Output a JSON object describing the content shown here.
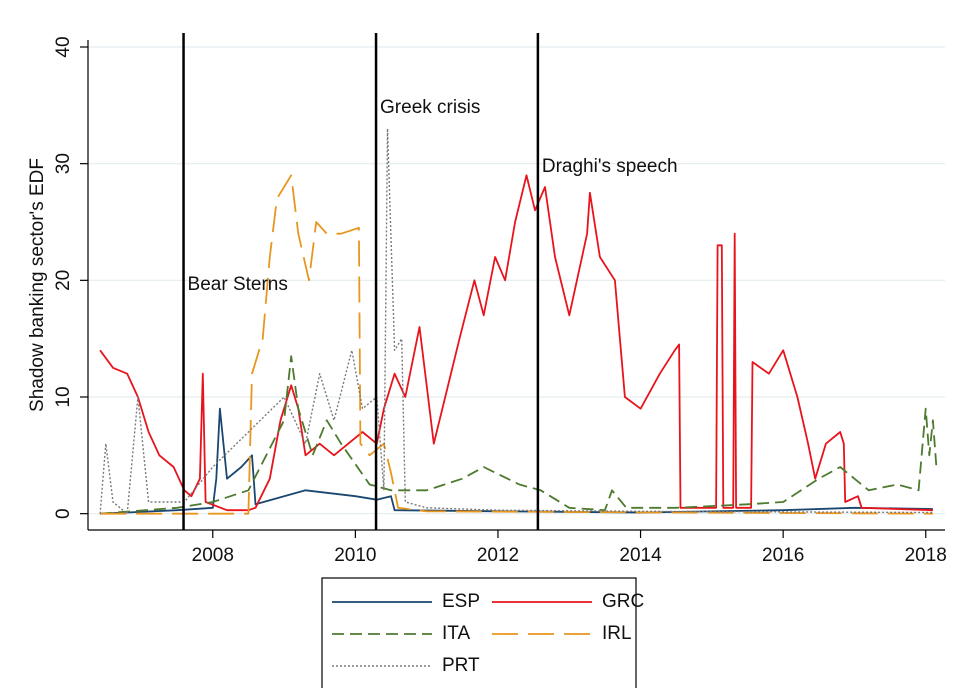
{
  "chart_data": {
    "type": "line",
    "y_label": "Shadow banking sector's EDF",
    "xlim": [
      2006.25,
      2018.27
    ],
    "ylim": [
      -1.4,
      40.6
    ],
    "xticks": [
      2008,
      2010,
      2012,
      2014,
      2016,
      2018
    ],
    "yticks": [
      0,
      10,
      20,
      30,
      40
    ],
    "grid": true,
    "legend": "bottom",
    "events": [
      {
        "x": 2007.59,
        "label": "Bear Sterns"
      },
      {
        "x": 2010.29,
        "label": "Greek crisis"
      },
      {
        "x": 2012.56,
        "label": "Draghi's speech"
      }
    ],
    "series": [
      {
        "name": "ESP",
        "color": "#1a476f",
        "style": "solid",
        "x": [
          2006.42,
          2007.5,
          2008.0,
          2008.05,
          2008.1,
          2008.2,
          2008.4,
          2008.55,
          2008.6,
          2009.0,
          2009.3,
          2010.0,
          2010.3,
          2010.5,
          2010.55,
          2012.0,
          2014.0,
          2016.0,
          2017.0,
          2018.1
        ],
        "values": [
          0,
          0.3,
          0.5,
          3,
          9,
          3,
          4,
          5,
          0.8,
          1.5,
          2,
          1.5,
          1.2,
          1.5,
          0.3,
          0.2,
          0.1,
          0.3,
          0.5,
          0.4
        ]
      },
      {
        "name": "GRC",
        "color": "#e8141c",
        "style": "solid",
        "x": [
          2006.42,
          2006.6,
          2006.8,
          2006.95,
          2007.1,
          2007.25,
          2007.45,
          2007.6,
          2007.7,
          2007.82,
          2007.86,
          2007.9,
          2008.2,
          2008.5,
          2008.6,
          2008.8,
          2008.95,
          2009.1,
          2009.2,
          2009.3,
          2009.5,
          2009.7,
          2009.9,
          2010.1,
          2010.3,
          2010.4,
          2010.55,
          2010.7,
          2010.9,
          2011.1,
          2011.46,
          2011.67,
          2011.8,
          2011.96,
          2012.1,
          2012.24,
          2012.4,
          2012.52,
          2012.66,
          2012.8,
          2013.0,
          2013.25,
          2013.29,
          2013.43,
          2013.64,
          2013.78,
          2014.0,
          2014.27,
          2014.48,
          2014.54,
          2014.56,
          2015.06,
          2015.08,
          2015.14,
          2015.16,
          2015.3,
          2015.32,
          2015.34,
          2015.55,
          2015.57,
          2015.8,
          2016.0,
          2016.2,
          2016.35,
          2016.45,
          2016.6,
          2016.8,
          2016.85,
          2016.87,
          2017.05,
          2017.1,
          2018.1
        ],
        "values": [
          14,
          12.5,
          12,
          10,
          7,
          5,
          4,
          2,
          1.5,
          3,
          12,
          1,
          0.3,
          0.3,
          0.5,
          3,
          8,
          11,
          9,
          5,
          6,
          5,
          6,
          7,
          6,
          9,
          12,
          10,
          16,
          6,
          15,
          20,
          17,
          22,
          20,
          25,
          29,
          26,
          28,
          22,
          17,
          24,
          27.5,
          22,
          20,
          10,
          9,
          12,
          14,
          14.5,
          0.5,
          0.5,
          23,
          23,
          0.5,
          0.5,
          24,
          0.5,
          0.5,
          13,
          12,
          14,
          10,
          6,
          3,
          6,
          7,
          6,
          1,
          1.5,
          0.5,
          0.3
        ]
      },
      {
        "name": "ITA",
        "color": "#4d7a2e",
        "style": "dash",
        "x": [
          2006.42,
          2007.5,
          2008.0,
          2008.5,
          2009.0,
          2009.1,
          2009.2,
          2009.4,
          2009.6,
          2009.8,
          2010.2,
          2010.5,
          2011.0,
          2011.5,
          2011.8,
          2012.3,
          2012.6,
          2013.0,
          2013.5,
          2013.6,
          2013.8,
          2014.5,
          2015.5,
          2016.0,
          2016.5,
          2016.8,
          2017.2,
          2017.6,
          2017.9,
          2018.0,
          2018.05,
          2018.1,
          2018.15
        ],
        "values": [
          0,
          0.5,
          1,
          2,
          8,
          13.5,
          9,
          5,
          8,
          6,
          2.5,
          2,
          2,
          3,
          4,
          2.5,
          2,
          0.5,
          0.3,
          2,
          0.5,
          0.5,
          0.8,
          1,
          3,
          4,
          2,
          2.5,
          2,
          9,
          5,
          8,
          4
        ]
      },
      {
        "name": "IRL",
        "color": "#e8961e",
        "style": "longdash",
        "x": [
          2006.42,
          2008.5,
          2008.55,
          2008.7,
          2008.8,
          2008.9,
          2009.1,
          2009.2,
          2009.35,
          2009.45,
          2009.6,
          2009.8,
          2010.05,
          2010.07,
          2010.2,
          2010.4,
          2010.5,
          2010.6,
          2011.0,
          2018.1
        ],
        "values": [
          0,
          0,
          12,
          15,
          22,
          27,
          29,
          24,
          20,
          25,
          24,
          24,
          24.5,
          6,
          5,
          6,
          3.5,
          0.5,
          0.2,
          0
        ]
      },
      {
        "name": "PRT",
        "color": "#7a7a7a",
        "style": "dot",
        "x": [
          2006.42,
          2006.5,
          2006.6,
          2006.8,
          2006.95,
          2007.1,
          2007.6,
          2008.0,
          2008.5,
          2009.0,
          2009.3,
          2009.5,
          2009.7,
          2009.95,
          2010.1,
          2010.3,
          2010.4,
          2010.45,
          2010.55,
          2010.65,
          2010.7,
          2011.0,
          2012.0,
          2014.0,
          2018.1
        ],
        "values": [
          0,
          6,
          1,
          0,
          10,
          1,
          1,
          4,
          7,
          10,
          6,
          12,
          8,
          14,
          9,
          10,
          2,
          33,
          14,
          15,
          1,
          0.5,
          0.3,
          0.2,
          0.1
        ]
      }
    ]
  }
}
